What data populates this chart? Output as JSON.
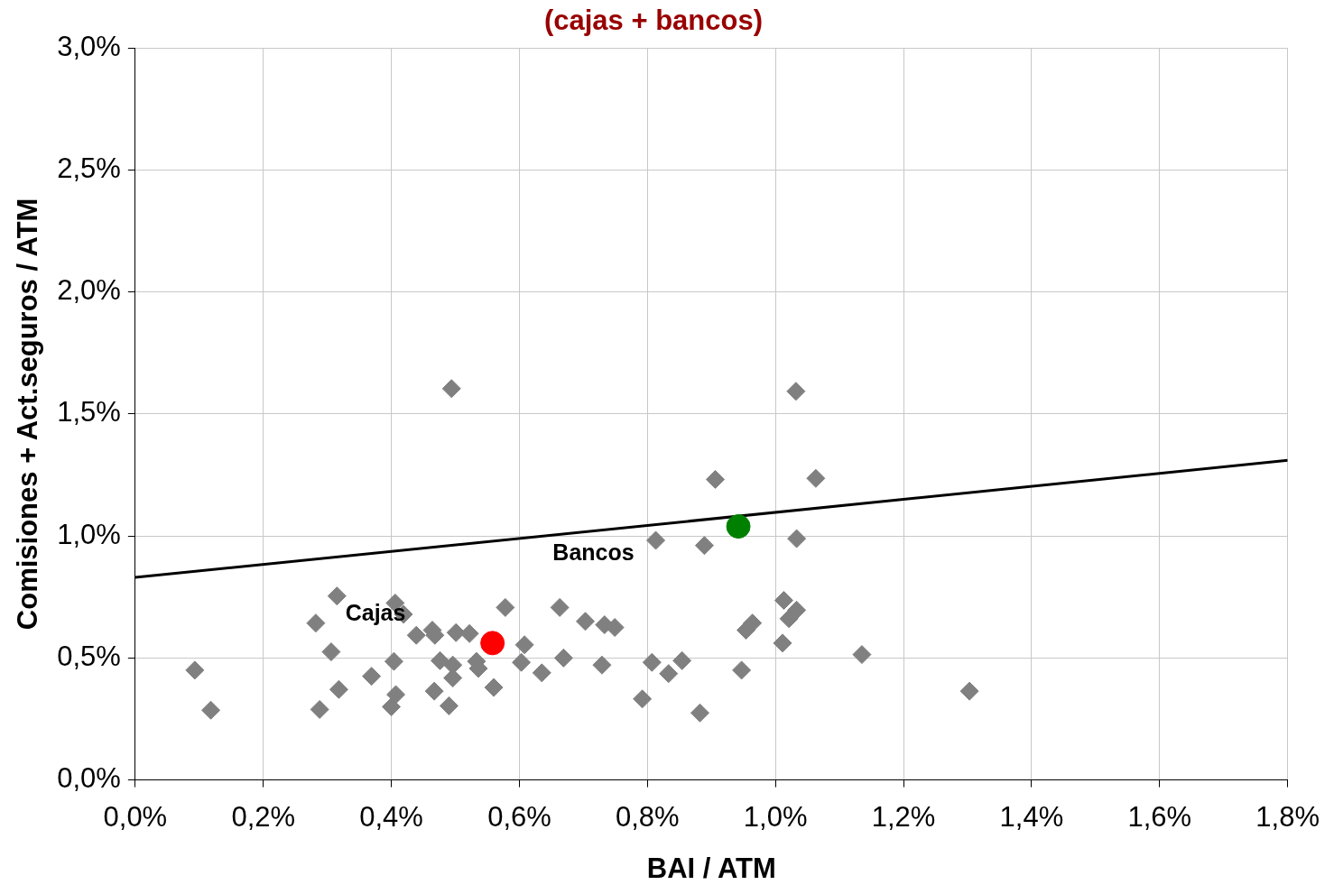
{
  "chart_data": {
    "type": "scatter",
    "title": "(cajas + bancos)",
    "xlabel": "BAI / ATM",
    "ylabel": "Comisiones + Act.seguros / ATM",
    "xlim": [
      0,
      1.8
    ],
    "ylim": [
      0,
      3
    ],
    "xticks": [
      {
        "value": 0,
        "label": "0,0%"
      },
      {
        "value": 0.2,
        "label": "0,2%"
      },
      {
        "value": 0.4,
        "label": "0,4%"
      },
      {
        "value": 0.6,
        "label": "0,6%"
      },
      {
        "value": 0.8,
        "label": "0,8%"
      },
      {
        "value": 1.0,
        "label": "1,0%"
      },
      {
        "value": 1.2,
        "label": "1,2%"
      },
      {
        "value": 1.4,
        "label": "1,4%"
      },
      {
        "value": 1.6,
        "label": "1,6%"
      },
      {
        "value": 1.8,
        "label": "1,8%"
      }
    ],
    "yticks": [
      {
        "value": 0,
        "label": "0,0%"
      },
      {
        "value": 0.5,
        "label": "0,5%"
      },
      {
        "value": 1.0,
        "label": "1,0%"
      },
      {
        "value": 1.5,
        "label": "1,5%"
      },
      {
        "value": 2.0,
        "label": "2,0%"
      },
      {
        "value": 2.5,
        "label": "2,5%"
      },
      {
        "value": 3.0,
        "label": "3,0%"
      }
    ],
    "grid": true,
    "legend": false,
    "series": [
      {
        "type": "scatter",
        "marker": "diamond",
        "color": "#808080",
        "x": [
          0.093,
          0.118,
          0.282,
          0.288,
          0.306,
          0.315,
          0.318,
          0.369,
          0.406,
          0.419,
          0.404,
          0.407,
          0.4,
          0.439,
          0.464,
          0.468,
          0.467,
          0.476,
          0.49,
          0.494,
          0.496,
          0.496,
          0.501,
          0.522,
          0.533,
          0.536,
          0.56,
          0.578,
          0.603,
          0.608,
          0.635,
          0.663,
          0.669,
          0.703,
          0.729,
          0.733,
          0.749,
          0.792,
          0.807,
          0.813,
          0.833,
          0.854,
          0.882,
          0.889,
          0.906,
          0.947,
          0.954,
          0.964,
          1.011,
          1.013,
          1.021,
          1.033,
          1.033,
          1.032,
          1.063,
          1.135,
          1.303
        ],
        "values": [
          0.45,
          0.286,
          0.643,
          0.289,
          0.525,
          0.754,
          0.371,
          0.425,
          0.725,
          0.679,
          0.486,
          0.35,
          0.3,
          0.593,
          0.614,
          0.593,
          0.364,
          0.489,
          0.304,
          1.604,
          0.471,
          0.418,
          0.604,
          0.6,
          0.486,
          0.457,
          0.379,
          0.707,
          0.482,
          0.554,
          0.439,
          0.707,
          0.5,
          0.65,
          0.471,
          0.636,
          0.625,
          0.332,
          0.482,
          0.982,
          0.436,
          0.489,
          0.275,
          0.961,
          1.232,
          0.45,
          0.614,
          0.643,
          0.561,
          0.736,
          0.661,
          0.696,
          0.989,
          1.593,
          1.236,
          0.514,
          0.364
        ]
      },
      {
        "type": "line",
        "marker": "none",
        "color": "#000000",
        "x": [
          0,
          1.8
        ],
        "values": [
          0.83,
          1.31
        ]
      },
      {
        "type": "scatter",
        "marker": "circle",
        "color": "#ff0000",
        "x": [
          0.558
        ],
        "values": [
          0.561
        ]
      },
      {
        "type": "scatter",
        "marker": "circle",
        "color": "#008000",
        "x": [
          0.942
        ],
        "values": [
          1.039
        ]
      }
    ],
    "annotations": [
      "Cajas",
      "Bancos"
    ]
  }
}
